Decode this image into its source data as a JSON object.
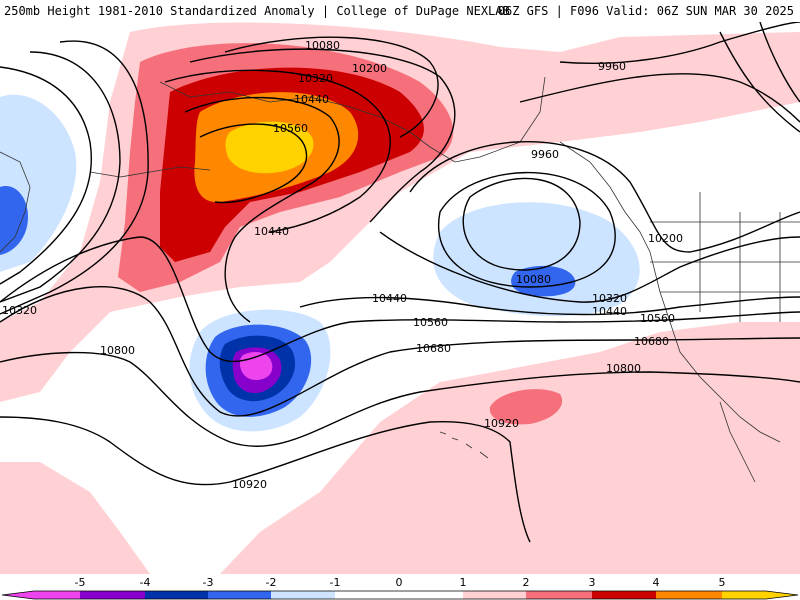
{
  "header": {
    "title_left": "250mb Height 1981-2010 Standardized Anomaly | College of DuPage NEXLAB",
    "title_right": "06Z GFS | F096 Valid: 06Z SUN MAR 30 2025"
  },
  "colors": {
    "neg5": "#ee44ee",
    "neg4": "#8800cc",
    "neg3": "#0033aa",
    "neg2": "#3366ee",
    "neg1": "#cce4ff",
    "pos1": "#ffd0d4",
    "pos2": "#f5707a",
    "pos3": "#cc0000",
    "pos4": "#ff8800",
    "pos5": "#ffd200"
  },
  "contour_labels": [
    {
      "id": "c10080-top",
      "text": "10080"
    },
    {
      "id": "c10200-top",
      "text": "10200"
    },
    {
      "id": "c10320-top",
      "text": "10320"
    },
    {
      "id": "c10440-top",
      "text": "10440"
    },
    {
      "id": "c10560-top",
      "text": "10560"
    },
    {
      "id": "c9960-ne",
      "text": "9960"
    },
    {
      "id": "c9960-low",
      "text": "9960"
    },
    {
      "id": "c10440-mid",
      "text": "10440"
    },
    {
      "id": "c10200-e",
      "text": "10200"
    },
    {
      "id": "c10080-low",
      "text": "10080"
    },
    {
      "id": "c10320-e",
      "text": "10320"
    },
    {
      "id": "c10440-e",
      "text": "10440"
    },
    {
      "id": "c10440-c",
      "text": "10440"
    },
    {
      "id": "c10560-c",
      "text": "10560"
    },
    {
      "id": "c10560-e",
      "text": "10560"
    },
    {
      "id": "c10680-c",
      "text": "10680"
    },
    {
      "id": "c10680-e",
      "text": "10680"
    },
    {
      "id": "c10800-w",
      "text": "10800"
    },
    {
      "id": "c10800-e",
      "text": "10800"
    },
    {
      "id": "c10920-c",
      "text": "10920"
    },
    {
      "id": "c10920-s",
      "text": "10920"
    },
    {
      "id": "c10320-w",
      "text": "10320"
    }
  ],
  "legend": {
    "ticks": [
      "-5",
      "-4",
      "-3",
      "-2",
      "-1",
      "0",
      "1",
      "2",
      "3",
      "4",
      "5"
    ]
  }
}
